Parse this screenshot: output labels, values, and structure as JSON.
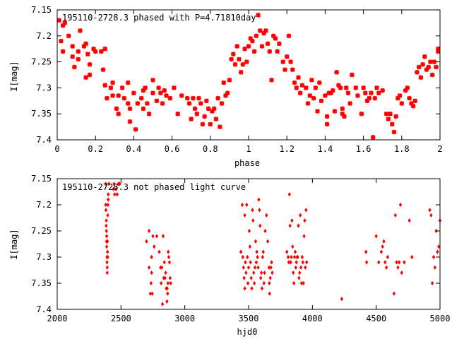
{
  "chart_data": [
    {
      "type": "scatter",
      "title": "195110-2728.3 phased with P=4.71810day",
      "xlabel": "phase",
      "ylabel": "I[mag]",
      "xlim": [
        0,
        2
      ],
      "ylim": [
        7.4,
        7.15
      ],
      "y_inverted": true,
      "x_ticks": [
        "0",
        "0.2",
        "0.4",
        "0.6",
        "0.8",
        "1",
        "1.2",
        "1.4",
        "1.6",
        "1.8",
        "2"
      ],
      "y_ticks": [
        "7.15",
        "7.2",
        "7.25",
        "7.3",
        "7.35",
        "7.4"
      ],
      "marker_color": "#ff0000",
      "points": [
        [
          0.01,
          7.17
        ],
        [
          0.02,
          7.21
        ],
        [
          0.03,
          7.23
        ],
        [
          0.03,
          7.18
        ],
        [
          0.04,
          7.175
        ],
        [
          0.06,
          7.2
        ],
        [
          0.08,
          7.22
        ],
        [
          0.08,
          7.24
        ],
        [
          0.09,
          7.26
        ],
        [
          0.11,
          7.23
        ],
        [
          0.11,
          7.245
        ],
        [
          0.12,
          7.19
        ],
        [
          0.14,
          7.22
        ],
        [
          0.15,
          7.28
        ],
        [
          0.15,
          7.215
        ],
        [
          0.16,
          7.235
        ],
        [
          0.17,
          7.255
        ],
        [
          0.17,
          7.275
        ],
        [
          0.19,
          7.225
        ],
        [
          0.2,
          7.23
        ],
        [
          0.23,
          7.23
        ],
        [
          0.24,
          7.265
        ],
        [
          0.25,
          7.295
        ],
        [
          0.26,
          7.32
        ],
        [
          0.25,
          7.225
        ],
        [
          0.28,
          7.3
        ],
        [
          0.29,
          7.315
        ],
        [
          0.29,
          7.29
        ],
        [
          0.31,
          7.34
        ],
        [
          0.32,
          7.35
        ],
        [
          0.32,
          7.315
        ],
        [
          0.34,
          7.3
        ],
        [
          0.35,
          7.32
        ],
        [
          0.37,
          7.29
        ],
        [
          0.37,
          7.33
        ],
        [
          0.38,
          7.34
        ],
        [
          0.38,
          7.365
        ],
        [
          0.4,
          7.31
        ],
        [
          0.41,
          7.38
        ],
        [
          0.42,
          7.33
        ],
        [
          0.44,
          7.32
        ],
        [
          0.45,
          7.34
        ],
        [
          0.45,
          7.305
        ],
        [
          0.46,
          7.3
        ],
        [
          0.47,
          7.33
        ],
        [
          0.48,
          7.35
        ],
        [
          0.5,
          7.31
        ],
        [
          0.5,
          7.285
        ],
        [
          0.52,
          7.325
        ],
        [
          0.53,
          7.3
        ],
        [
          0.54,
          7.31
        ],
        [
          0.55,
          7.33
        ],
        [
          0.56,
          7.305
        ],
        [
          0.57,
          7.315
        ],
        [
          0.59,
          7.32
        ],
        [
          0.61,
          7.3
        ],
        [
          0.63,
          7.35
        ],
        [
          0.65,
          7.315
        ],
        [
          0.68,
          7.32
        ],
        [
          0.69,
          7.33
        ],
        [
          0.7,
          7.36
        ],
        [
          0.71,
          7.32
        ],
        [
          0.72,
          7.34
        ],
        [
          0.73,
          7.35
        ],
        [
          0.74,
          7.32
        ],
        [
          0.75,
          7.33
        ],
        [
          0.76,
          7.37
        ],
        [
          0.77,
          7.355
        ],
        [
          0.78,
          7.325
        ],
        [
          0.79,
          7.34
        ],
        [
          0.8,
          7.37
        ],
        [
          0.81,
          7.345
        ],
        [
          0.82,
          7.34
        ],
        [
          0.83,
          7.36
        ],
        [
          0.84,
          7.32
        ],
        [
          0.85,
          7.375
        ],
        [
          0.86,
          7.33
        ],
        [
          0.87,
          7.29
        ],
        [
          0.88,
          7.315
        ],
        [
          0.89,
          7.31
        ],
        [
          0.9,
          7.285
        ],
        [
          0.91,
          7.245
        ],
        [
          0.92,
          7.235
        ],
        [
          0.93,
          7.255
        ],
        [
          0.94,
          7.22
        ],
        [
          0.95,
          7.245
        ],
        [
          0.96,
          7.27
        ],
        [
          0.97,
          7.255
        ],
        [
          0.98,
          7.225
        ],
        [
          0.99,
          7.25
        ],
        [
          1.0,
          7.22
        ],
        [
          1.01,
          7.205
        ],
        [
          1.02,
          7.21
        ],
        [
          1.03,
          7.23
        ],
        [
          1.04,
          7.2
        ],
        [
          1.05,
          7.16
        ],
        [
          1.06,
          7.19
        ],
        [
          1.07,
          7.22
        ],
        [
          1.08,
          7.195
        ],
        [
          1.09,
          7.19
        ],
        [
          1.1,
          7.215
        ],
        [
          1.11,
          7.23
        ],
        [
          1.12,
          7.285
        ],
        [
          1.13,
          7.2
        ],
        [
          1.14,
          7.205
        ],
        [
          1.15,
          7.23
        ],
        [
          1.16,
          7.215
        ],
        [
          1.18,
          7.25
        ],
        [
          1.19,
          7.265
        ],
        [
          1.2,
          7.24
        ],
        [
          1.21,
          7.2
        ],
        [
          1.22,
          7.25
        ],
        [
          1.23,
          7.265
        ],
        [
          1.24,
          7.29
        ],
        [
          1.25,
          7.3
        ],
        [
          1.26,
          7.28
        ],
        [
          1.27,
          7.31
        ],
        [
          1.28,
          7.295
        ],
        [
          1.3,
          7.3
        ],
        [
          1.31,
          7.33
        ],
        [
          1.32,
          7.315
        ],
        [
          1.33,
          7.285
        ],
        [
          1.34,
          7.32
        ],
        [
          1.35,
          7.3
        ],
        [
          1.36,
          7.345
        ],
        [
          1.37,
          7.29
        ],
        [
          1.38,
          7.325
        ],
        [
          1.4,
          7.315
        ],
        [
          1.41,
          7.355
        ],
        [
          1.41,
          7.37
        ],
        [
          1.42,
          7.31
        ],
        [
          1.43,
          7.31
        ],
        [
          1.44,
          7.305
        ],
        [
          1.45,
          7.345
        ],
        [
          1.46,
          7.27
        ],
        [
          1.47,
          7.295
        ],
        [
          1.48,
          7.3
        ],
        [
          1.49,
          7.34
        ],
        [
          1.49,
          7.35
        ],
        [
          1.5,
          7.355
        ],
        [
          1.51,
          7.3
        ],
        [
          1.52,
          7.31
        ],
        [
          1.53,
          7.33
        ],
        [
          1.54,
          7.275
        ],
        [
          1.56,
          7.3
        ],
        [
          1.57,
          7.315
        ],
        [
          1.59,
          7.35
        ],
        [
          1.6,
          7.3
        ],
        [
          1.61,
          7.31
        ],
        [
          1.62,
          7.325
        ],
        [
          1.63,
          7.32
        ],
        [
          1.64,
          7.31
        ],
        [
          1.65,
          7.395
        ],
        [
          1.66,
          7.32
        ],
        [
          1.67,
          7.3
        ],
        [
          1.68,
          7.31
        ],
        [
          1.7,
          7.305
        ],
        [
          1.72,
          7.35
        ],
        [
          1.73,
          7.36
        ],
        [
          1.74,
          7.35
        ],
        [
          1.75,
          7.37
        ],
        [
          1.76,
          7.385
        ],
        [
          1.77,
          7.355
        ],
        [
          1.78,
          7.32
        ],
        [
          1.79,
          7.315
        ],
        [
          1.8,
          7.33
        ],
        [
          1.82,
          7.305
        ],
        [
          1.83,
          7.3
        ],
        [
          1.84,
          7.32
        ],
        [
          1.85,
          7.33
        ],
        [
          1.86,
          7.335
        ],
        [
          1.87,
          7.325
        ],
        [
          1.88,
          7.27
        ],
        [
          1.89,
          7.26
        ],
        [
          1.9,
          7.28
        ],
        [
          1.91,
          7.255
        ],
        [
          1.92,
          7.24
        ],
        [
          1.93,
          7.265
        ],
        [
          1.94,
          7.26
        ],
        [
          1.95,
          7.25
        ],
        [
          1.96,
          7.275
        ],
        [
          1.97,
          7.25
        ],
        [
          1.98,
          7.26
        ],
        [
          1.99,
          7.225
        ],
        [
          1.99,
          7.23
        ]
      ]
    },
    {
      "type": "scatter",
      "title": "195110-2728.3 not phased light curve",
      "xlabel": "hjd0",
      "ylabel": "I[mag]",
      "xlim": [
        2000,
        5000
      ],
      "ylim": [
        7.4,
        7.15
      ],
      "y_inverted": true,
      "x_ticks": [
        "2000",
        "2500",
        "3000",
        "3500",
        "4000",
        "4500",
        "5000"
      ],
      "y_ticks": [
        "7.15",
        "7.2",
        "7.25",
        "7.3",
        "7.35",
        "7.4"
      ],
      "marker_color": "#ff0000",
      "points": [
        [
          2380,
          7.16
        ],
        [
          2380,
          7.2
        ],
        [
          2382,
          7.21
        ],
        [
          2384,
          7.24
        ],
        [
          2385,
          7.23
        ],
        [
          2386,
          7.25
        ],
        [
          2386,
          7.27
        ],
        [
          2388,
          7.26
        ],
        [
          2388,
          7.28
        ],
        [
          2390,
          7.3
        ],
        [
          2390,
          7.31
        ],
        [
          2392,
          7.32
        ],
        [
          2392,
          7.33
        ],
        [
          2394,
          7.27
        ],
        [
          2394,
          7.29
        ],
        [
          2396,
          7.3
        ],
        [
          2396,
          7.22
        ],
        [
          2398,
          7.2
        ],
        [
          2400,
          7.18
        ],
        [
          2400,
          7.19
        ],
        [
          2405,
          7.16
        ],
        [
          2440,
          7.17
        ],
        [
          2445,
          7.16
        ],
        [
          2450,
          7.18
        ],
        [
          2460,
          7.17
        ],
        [
          2470,
          7.18
        ],
        [
          2480,
          7.16
        ],
        [
          2490,
          7.16
        ],
        [
          2700,
          7.27
        ],
        [
          2720,
          7.25
        ],
        [
          2720,
          7.32
        ],
        [
          2730,
          7.37
        ],
        [
          2735,
          7.35
        ],
        [
          2740,
          7.3
        ],
        [
          2740,
          7.33
        ],
        [
          2745,
          7.37
        ],
        [
          2750,
          7.26
        ],
        [
          2760,
          7.28
        ],
        [
          2780,
          7.26
        ],
        [
          2800,
          7.29
        ],
        [
          2810,
          7.32
        ],
        [
          2815,
          7.35
        ],
        [
          2820,
          7.32
        ],
        [
          2825,
          7.39
        ],
        [
          2830,
          7.26
        ],
        [
          2835,
          7.34
        ],
        [
          2840,
          7.31
        ],
        [
          2845,
          7.34
        ],
        [
          2850,
          7.33
        ],
        [
          2855,
          7.36
        ],
        [
          2860,
          7.385
        ],
        [
          2862,
          7.36
        ],
        [
          2865,
          7.37
        ],
        [
          2868,
          7.35
        ],
        [
          2870,
          7.29
        ],
        [
          2875,
          7.3
        ],
        [
          2880,
          7.31
        ],
        [
          2885,
          7.34
        ],
        [
          2890,
          7.35
        ],
        [
          3440,
          7.29
        ],
        [
          3450,
          7.2
        ],
        [
          3455,
          7.3
        ],
        [
          3460,
          7.32
        ],
        [
          3465,
          7.34
        ],
        [
          3470,
          7.22
        ],
        [
          3470,
          7.36
        ],
        [
          3475,
          7.31
        ],
        [
          3480,
          7.33
        ],
        [
          3485,
          7.2
        ],
        [
          3490,
          7.3
        ],
        [
          3495,
          7.35
        ],
        [
          3500,
          7.32
        ],
        [
          3505,
          7.25
        ],
        [
          3510,
          7.28
        ],
        [
          3515,
          7.31
        ],
        [
          3520,
          7.34
        ],
        [
          3525,
          7.36
        ],
        [
          3530,
          7.21
        ],
        [
          3535,
          7.23
        ],
        [
          3540,
          7.33
        ],
        [
          3545,
          7.35
        ],
        [
          3550,
          7.32
        ],
        [
          3555,
          7.27
        ],
        [
          3560,
          7.31
        ],
        [
          3565,
          7.29
        ],
        [
          3570,
          7.3
        ],
        [
          3575,
          7.32
        ],
        [
          3580,
          7.19
        ],
        [
          3585,
          7.21
        ],
        [
          3590,
          7.24
        ],
        [
          3595,
          7.34
        ],
        [
          3600,
          7.33
        ],
        [
          3605,
          7.36
        ],
        [
          3610,
          7.3
        ],
        [
          3615,
          7.29
        ],
        [
          3620,
          7.35
        ],
        [
          3625,
          7.33
        ],
        [
          3630,
          7.25
        ],
        [
          3640,
          7.22
        ],
        [
          3650,
          7.27
        ],
        [
          3660,
          7.32
        ],
        [
          3662,
          7.35
        ],
        [
          3665,
          7.37
        ],
        [
          3670,
          7.34
        ],
        [
          3675,
          7.32
        ],
        [
          3680,
          7.31
        ],
        [
          3685,
          7.33
        ],
        [
          3800,
          7.29
        ],
        [
          3810,
          7.3
        ],
        [
          3815,
          7.31
        ],
        [
          3820,
          7.18
        ],
        [
          3825,
          7.24
        ],
        [
          3830,
          7.31
        ],
        [
          3835,
          7.3
        ],
        [
          3840,
          7.23
        ],
        [
          3845,
          7.28
        ],
        [
          3850,
          7.33
        ],
        [
          3855,
          7.35
        ],
        [
          3860,
          7.3
        ],
        [
          3865,
          7.29
        ],
        [
          3870,
          7.32
        ],
        [
          3875,
          7.31
        ],
        [
          3880,
          7.3
        ],
        [
          3885,
          7.3
        ],
        [
          3890,
          7.24
        ],
        [
          3895,
          7.34
        ],
        [
          3900,
          7.33
        ],
        [
          3905,
          7.22
        ],
        [
          3910,
          7.32
        ],
        [
          3915,
          7.35
        ],
        [
          3920,
          7.3
        ],
        [
          3925,
          7.31
        ],
        [
          3930,
          7.35
        ],
        [
          3935,
          7.26
        ],
        [
          3940,
          7.23
        ],
        [
          3945,
          7.32
        ],
        [
          3950,
          7.21
        ],
        [
          3955,
          7.31
        ],
        [
          4230,
          7.38
        ],
        [
          4420,
          7.29
        ],
        [
          4425,
          7.31
        ],
        [
          4500,
          7.26
        ],
        [
          4520,
          7.31
        ],
        [
          4540,
          7.29
        ],
        [
          4550,
          7.28
        ],
        [
          4560,
          7.27
        ],
        [
          4570,
          7.31
        ],
        [
          4580,
          7.32
        ],
        [
          4590,
          7.3
        ],
        [
          4640,
          7.37
        ],
        [
          4650,
          7.22
        ],
        [
          4660,
          7.31
        ],
        [
          4670,
          7.32
        ],
        [
          4680,
          7.31
        ],
        [
          4690,
          7.2
        ],
        [
          4700,
          7.33
        ],
        [
          4720,
          7.31
        ],
        [
          4760,
          7.23
        ],
        [
          4780,
          7.3
        ],
        [
          4920,
          7.21
        ],
        [
          4930,
          7.22
        ],
        [
          4940,
          7.35
        ],
        [
          4950,
          7.3
        ],
        [
          4960,
          7.32
        ],
        [
          4970,
          7.25
        ],
        [
          4980,
          7.29
        ],
        [
          4990,
          7.28
        ],
        [
          5000,
          7.23
        ]
      ]
    }
  ]
}
